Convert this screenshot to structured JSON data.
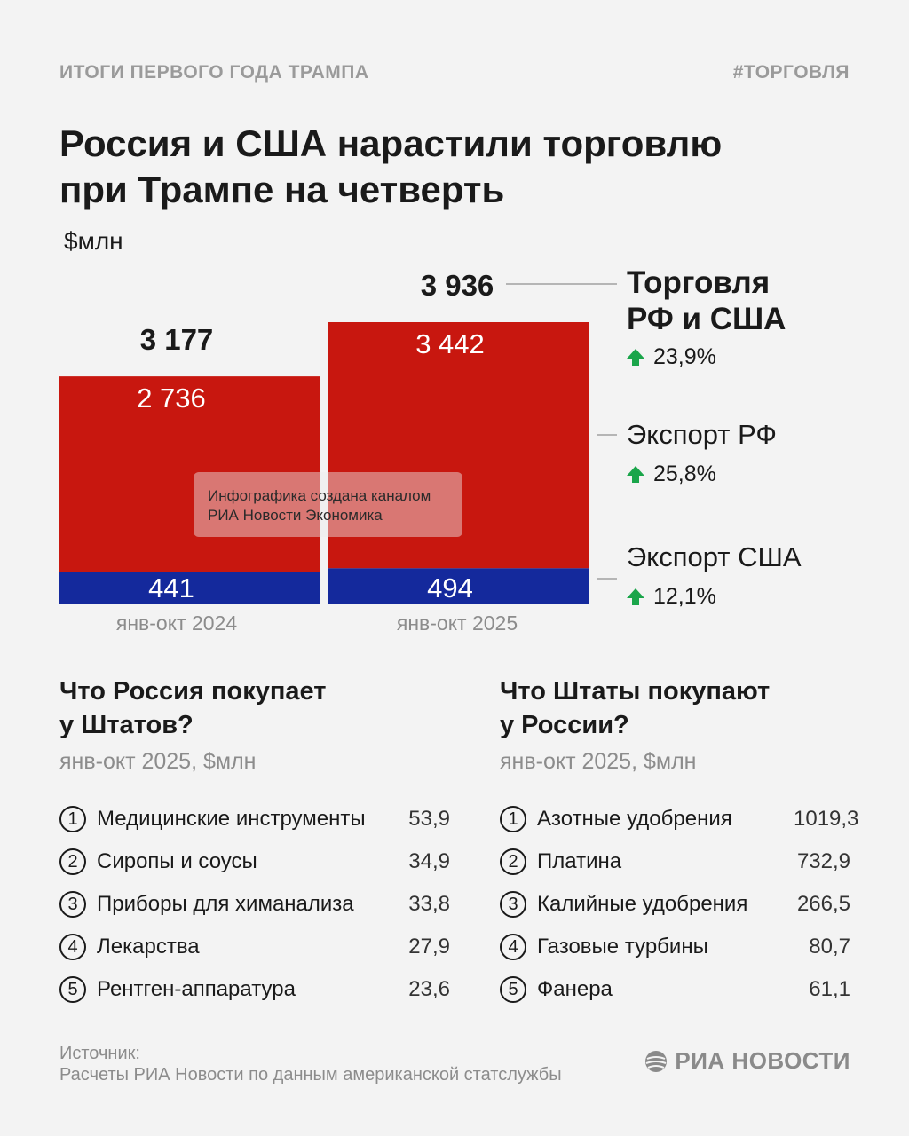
{
  "header": {
    "kicker_left": "ИТОГИ ПЕРВОГО ГОДА ТРАМПА",
    "kicker_right": "#ТОРГОВЛЯ",
    "title_line1": "Россия и США нарастили торговлю",
    "title_line2": "при Трампе на четверть",
    "unit": "$млн"
  },
  "chart_data": {
    "type": "bar",
    "stacked": true,
    "categories": [
      "янв-окт 2024",
      "янв-окт 2025"
    ],
    "series": [
      {
        "name": "Экспорт США",
        "values": [
          441,
          494
        ],
        "color": "#14299c"
      },
      {
        "name": "Экспорт РФ",
        "values": [
          2736,
          3442
        ],
        "color": "#c8170f"
      }
    ],
    "totals": [
      3177,
      3936
    ],
    "total_labels": [
      "3 177",
      "3 936"
    ],
    "segment_labels": {
      "Экспорт РФ": [
        "2 736",
        "3 442"
      ],
      "Экспорт США": [
        "441",
        "494"
      ]
    },
    "ylim": [
      0,
      3936
    ],
    "grid": false,
    "legend_position": "right"
  },
  "legend": {
    "total": {
      "title_line1": "Торговля",
      "title_line2": "РФ и США",
      "change": "23,9%"
    },
    "rf_export": {
      "name": "Экспорт РФ",
      "change": "25,8%"
    },
    "us_export": {
      "name": "Экспорт США",
      "change": "12,1%"
    },
    "arrow_color": "#1aa54a"
  },
  "watermark": {
    "line1": "Инфографика создана каналом",
    "line2": "РИА Новости Экономика"
  },
  "left_section": {
    "title_line1": "Что Россия покупает",
    "title_line2": "у Штатов?",
    "subtitle": "янв-окт 2025, $млн",
    "items": [
      {
        "rank": "1",
        "label": "Медицинские инструменты",
        "value": "53,9"
      },
      {
        "rank": "2",
        "label": "Сиропы и соусы",
        "value": "34,9"
      },
      {
        "rank": "3",
        "label": "Приборы для химанализа",
        "value": "33,8"
      },
      {
        "rank": "4",
        "label": "Лекарства",
        "value": "27,9"
      },
      {
        "rank": "5",
        "label": "Рентген-аппаратура",
        "value": "23,6"
      }
    ]
  },
  "right_section": {
    "title_line1": "Что Штаты покупают",
    "title_line2": "у России?",
    "subtitle": "янв-окт 2025, $млн",
    "items": [
      {
        "rank": "1",
        "label": "Азотные удобрения",
        "value": "1019,3"
      },
      {
        "rank": "2",
        "label": "Платина",
        "value": "732,9"
      },
      {
        "rank": "3",
        "label": "Калийные удобрения",
        "value": "266,5"
      },
      {
        "rank": "4",
        "label": "Газовые турбины",
        "value": "80,7"
      },
      {
        "rank": "5",
        "label": "Фанера",
        "value": "61,1"
      }
    ]
  },
  "footer": {
    "source_label": "Источник:",
    "source_text": "Расчеты РИА Новости по данным американской статслужбы",
    "logo_text": "РИА НОВОСТИ",
    "logo_icon": "ria-globe-icon"
  }
}
